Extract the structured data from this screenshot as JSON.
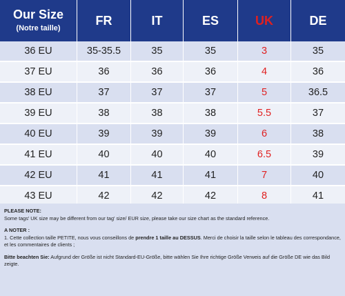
{
  "table": {
    "headers": {
      "our_size_title": "Our Size",
      "our_size_sub": "(Notre taille)",
      "fr": "FR",
      "it": "IT",
      "es": "ES",
      "uk": "UK",
      "de": "DE"
    },
    "rows": [
      {
        "our": "36 EU",
        "fr": "35-35.5",
        "it": "35",
        "es": "35",
        "uk": "3",
        "de": "35"
      },
      {
        "our": "37 EU",
        "fr": "36",
        "it": "36",
        "es": "36",
        "uk": "4",
        "de": "36"
      },
      {
        "our": "38 EU",
        "fr": "37",
        "it": "37",
        "es": "37",
        "uk": "5",
        "de": "36.5"
      },
      {
        "our": "39 EU",
        "fr": "38",
        "it": "38",
        "es": "38",
        "uk": "5.5",
        "de": "37"
      },
      {
        "our": "40 EU",
        "fr": "39",
        "it": "39",
        "es": "39",
        "uk": "6",
        "de": "38"
      },
      {
        "our": "41 EU",
        "fr": "40",
        "it": "40",
        "es": "40",
        "uk": "6.5",
        "de": "39"
      },
      {
        "our": "42 EU",
        "fr": "41",
        "it": "41",
        "es": "41",
        "uk": "7",
        "de": "40"
      },
      {
        "our": "43 EU",
        "fr": "42",
        "it": "42",
        "es": "42",
        "uk": "8",
        "de": "41"
      }
    ]
  },
  "notes": {
    "please_note_head": "PLEASE NOTE:",
    "please_note_text": "Some tags' UK size  may be different from our tag' size/ EUR size, please take our size chart as the standard reference.",
    "a_noter_head": "A NOTER :",
    "a_noter_text_1": "1. Cette collection taille PETITE, nous vous conseillons de ",
    "a_noter_bold": "prendre 1 taille au DESSUS",
    "a_noter_text_2": ". Merci de choisir la taille selon le tableau des correspondance, et  les commentaires de clients ;",
    "bitte_head": "Bitte beachten Sie:",
    "bitte_text": " Aufgrund der Größe ist nicht Standard-EU-Größe, bitte wählen Sie Ihre richtige Größe Verweis auf die Größe DE wie das Bild zeigte."
  },
  "colors": {
    "header_bg": "#1f3a8a",
    "uk_accent": "#e02020",
    "row_odd": "#d9dff0",
    "row_even": "#eef1f8"
  }
}
